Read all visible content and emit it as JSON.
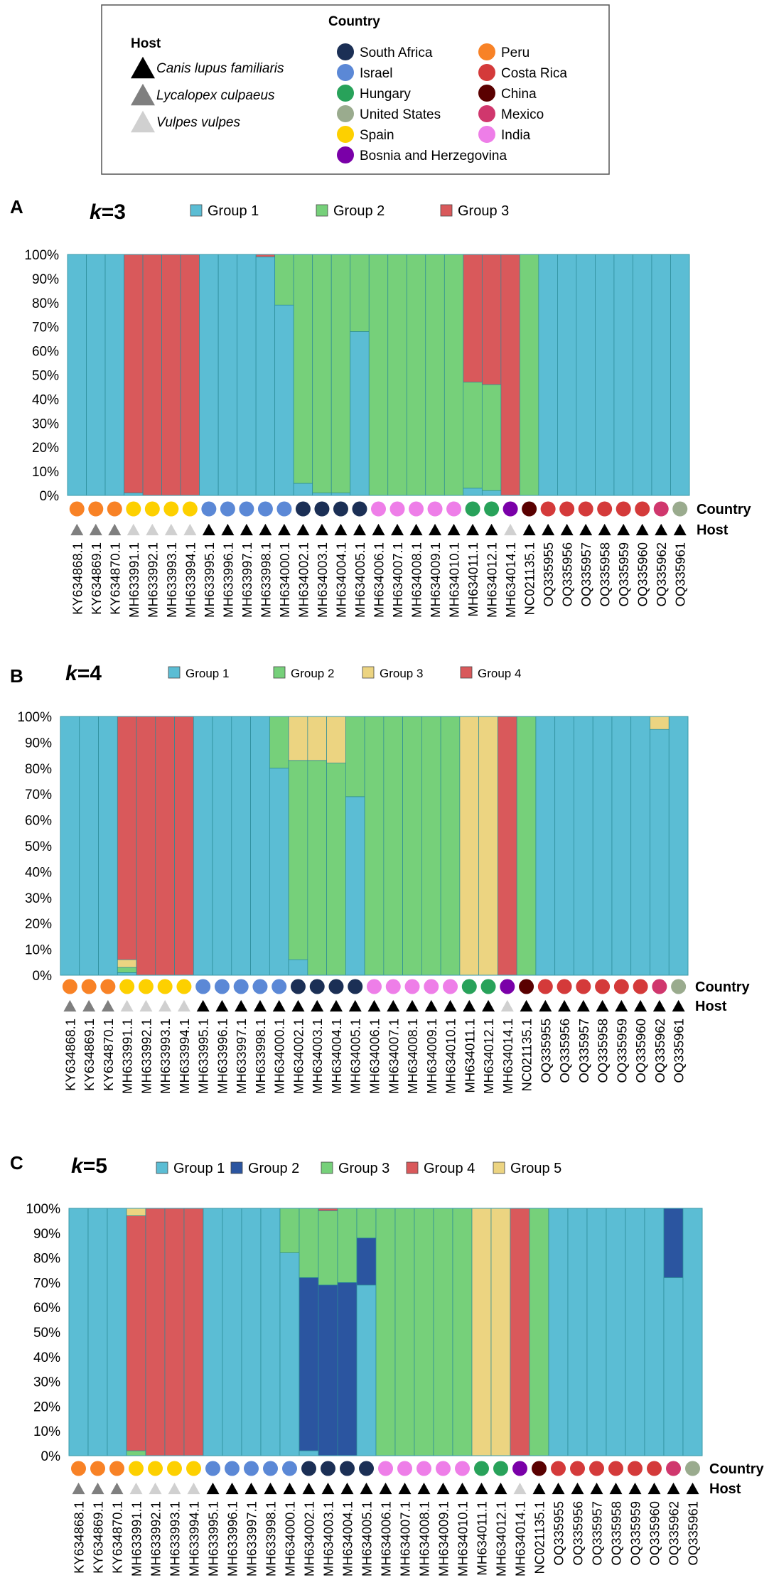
{
  "legend": {
    "host_title": "Host",
    "hosts": [
      {
        "name": "Canis lupus familiaris",
        "color": "#000000",
        "key": "C"
      },
      {
        "name": "Lycalopex culpaeus",
        "color": "#7f7f7f",
        "key": "L"
      },
      {
        "name": "Vulpes vulpes",
        "color": "#d0d0d0",
        "key": "V"
      }
    ],
    "country_title": "Country",
    "countries": [
      {
        "name": "South Africa",
        "color": "#1b2f55",
        "key": "SA"
      },
      {
        "name": "Israel",
        "color": "#5b88d6",
        "key": "IL"
      },
      {
        "name": "Hungary",
        "color": "#28a25a",
        "key": "HU"
      },
      {
        "name": "United States",
        "color": "#9aab8e",
        "key": "US"
      },
      {
        "name": "Spain",
        "color": "#fdd000",
        "key": "ES"
      },
      {
        "name": "Bosnia and Herzegovina",
        "color": "#7a00a8",
        "key": "BA"
      },
      {
        "name": "Peru",
        "color": "#f88226",
        "key": "PE"
      },
      {
        "name": "Costa Rica",
        "color": "#d43a3a",
        "key": "CR"
      },
      {
        "name": "China",
        "color": "#5a0000",
        "key": "CN"
      },
      {
        "name": "Mexico",
        "color": "#d0376d",
        "key": "MX"
      },
      {
        "name": "India",
        "color": "#ee7ee8",
        "key": "IN"
      }
    ]
  },
  "row_labels": {
    "country": "Country",
    "host": "Host"
  },
  "chart_data": [
    {
      "panel": "A",
      "k_prefix": "k",
      "k_value": "=3",
      "type": "bar",
      "stacked": true,
      "ylim": [
        0,
        100
      ],
      "yticks": [
        "0%",
        "10%",
        "20%",
        "30%",
        "40%",
        "50%",
        "60%",
        "70%",
        "80%",
        "90%",
        "100%"
      ],
      "groups": [
        {
          "name": "Group 1",
          "color": "#5bbdd4"
        },
        {
          "name": "Group 2",
          "color": "#76d07a"
        },
        {
          "name": "Group 3",
          "color": "#d9595b"
        }
      ],
      "categories": [
        "KY634868.1",
        "KY634869.1",
        "KY634870.1",
        "MH633991.1",
        "MH633992.1",
        "MH633993.1",
        "MH633994.1",
        "MH633995.1",
        "MH633996.1",
        "MH633997.1",
        "MH633998.1",
        "MH634000.1",
        "MH634002.1",
        "MH634003.1",
        "MH634004.1",
        "MH634005.1",
        "MH634006.1",
        "MH634007.1",
        "MH634008.1",
        "MH634009.1",
        "MH634010.1",
        "MH634011.1",
        "MH634012.1",
        "MH634014.1",
        "NC021135.1",
        "OQ335955",
        "OQ335956",
        "OQ335957",
        "OQ335958",
        "OQ335959",
        "OQ335960",
        "OQ335962",
        "OQ335961"
      ],
      "country": [
        "PE",
        "PE",
        "PE",
        "ES",
        "ES",
        "ES",
        "ES",
        "IL",
        "IL",
        "IL",
        "IL",
        "IL",
        "SA",
        "SA",
        "SA",
        "SA",
        "IN",
        "IN",
        "IN",
        "IN",
        "IN",
        "HU",
        "HU",
        "BA",
        "CN",
        "CR",
        "CR",
        "CR",
        "CR",
        "CR",
        "CR",
        "MX",
        "US"
      ],
      "host": [
        "L",
        "L",
        "L",
        "V",
        "V",
        "V",
        "V",
        "C",
        "C",
        "C",
        "C",
        "C",
        "C",
        "C",
        "C",
        "C",
        "C",
        "C",
        "C",
        "C",
        "C",
        "C",
        "C",
        "V",
        "C",
        "C",
        "C",
        "C",
        "C",
        "C",
        "C",
        "C",
        "C"
      ],
      "values": [
        [
          100,
          0,
          0
        ],
        [
          100,
          0,
          0
        ],
        [
          100,
          0,
          0
        ],
        [
          1,
          0,
          99
        ],
        [
          0,
          0,
          100
        ],
        [
          0,
          0,
          100
        ],
        [
          0,
          0,
          100
        ],
        [
          100,
          0,
          0
        ],
        [
          100,
          0,
          0
        ],
        [
          100,
          0,
          0
        ],
        [
          99,
          0,
          1
        ],
        [
          79,
          21,
          0
        ],
        [
          5,
          95,
          0
        ],
        [
          1,
          99,
          0
        ],
        [
          1,
          99,
          0
        ],
        [
          68,
          32,
          0
        ],
        [
          0,
          100,
          0
        ],
        [
          0,
          100,
          0
        ],
        [
          0,
          100,
          0
        ],
        [
          0,
          100,
          0
        ],
        [
          0,
          100,
          0
        ],
        [
          3,
          44,
          53
        ],
        [
          2,
          44,
          54
        ],
        [
          0,
          0,
          100
        ],
        [
          0,
          100,
          0
        ],
        [
          100,
          0,
          0
        ],
        [
          100,
          0,
          0
        ],
        [
          100,
          0,
          0
        ],
        [
          100,
          0,
          0
        ],
        [
          100,
          0,
          0
        ],
        [
          100,
          0,
          0
        ],
        [
          100,
          0,
          0
        ],
        [
          100,
          0,
          0
        ]
      ]
    },
    {
      "panel": "B",
      "k_prefix": "k",
      "k_value": "=4",
      "type": "bar",
      "stacked": true,
      "ylim": [
        0,
        100
      ],
      "yticks": [
        "0%",
        "10%",
        "20%",
        "30%",
        "40%",
        "50%",
        "60%",
        "70%",
        "80%",
        "90%",
        "100%"
      ],
      "groups": [
        {
          "name": "Group 1",
          "color": "#5bbdd4"
        },
        {
          "name": "Group 2",
          "color": "#76d07a"
        },
        {
          "name": "Group 3",
          "color": "#ecd481"
        },
        {
          "name": "Group 4",
          "color": "#d9595b"
        }
      ],
      "categories": [
        "KY634868.1",
        "KY634869.1",
        "KY634870.1",
        "MH633991.1",
        "MH633992.1",
        "MH633993.1",
        "MH633994.1",
        "MH633995.1",
        "MH633996.1",
        "MH633997.1",
        "MH633998.1",
        "MH634000.1",
        "MH634002.1",
        "MH634003.1",
        "MH634004.1",
        "MH634005.1",
        "MH634006.1",
        "MH634007.1",
        "MH634008.1",
        "MH634009.1",
        "MH634010.1",
        "MH634011.1",
        "MH634012.1",
        "MH634014.1",
        "NC021135.1",
        "OQ335955",
        "OQ335956",
        "OQ335957",
        "OQ335958",
        "OQ335959",
        "OQ335960",
        "OQ335962",
        "OQ335961"
      ],
      "country": [
        "PE",
        "PE",
        "PE",
        "ES",
        "ES",
        "ES",
        "ES",
        "IL",
        "IL",
        "IL",
        "IL",
        "IL",
        "SA",
        "SA",
        "SA",
        "SA",
        "IN",
        "IN",
        "IN",
        "IN",
        "IN",
        "HU",
        "HU",
        "BA",
        "CN",
        "CR",
        "CR",
        "CR",
        "CR",
        "CR",
        "CR",
        "MX",
        "US"
      ],
      "host": [
        "L",
        "L",
        "L",
        "V",
        "V",
        "V",
        "V",
        "C",
        "C",
        "C",
        "C",
        "C",
        "C",
        "C",
        "C",
        "C",
        "C",
        "C",
        "C",
        "C",
        "C",
        "C",
        "C",
        "V",
        "C",
        "C",
        "C",
        "C",
        "C",
        "C",
        "C",
        "C",
        "C"
      ],
      "values": [
        [
          100,
          0,
          0,
          0
        ],
        [
          100,
          0,
          0,
          0
        ],
        [
          100,
          0,
          0,
          0
        ],
        [
          1,
          2,
          3,
          94
        ],
        [
          0,
          0,
          0,
          100
        ],
        [
          0,
          0,
          0,
          100
        ],
        [
          0,
          0,
          0,
          100
        ],
        [
          100,
          0,
          0,
          0
        ],
        [
          100,
          0,
          0,
          0
        ],
        [
          100,
          0,
          0,
          0
        ],
        [
          100,
          0,
          0,
          0
        ],
        [
          80,
          20,
          0,
          0
        ],
        [
          6,
          77,
          17,
          0
        ],
        [
          0,
          83,
          17,
          0
        ],
        [
          0,
          82,
          18,
          0
        ],
        [
          69,
          31,
          0,
          0
        ],
        [
          0,
          100,
          0,
          0
        ],
        [
          0,
          100,
          0,
          0
        ],
        [
          0,
          100,
          0,
          0
        ],
        [
          0,
          100,
          0,
          0
        ],
        [
          0,
          100,
          0,
          0
        ],
        [
          0,
          0,
          100,
          0
        ],
        [
          0,
          0,
          100,
          0
        ],
        [
          0,
          0,
          0,
          100
        ],
        [
          0,
          100,
          0,
          0
        ],
        [
          100,
          0,
          0,
          0
        ],
        [
          100,
          0,
          0,
          0
        ],
        [
          100,
          0,
          0,
          0
        ],
        [
          100,
          0,
          0,
          0
        ],
        [
          100,
          0,
          0,
          0
        ],
        [
          100,
          0,
          0,
          0
        ],
        [
          95,
          0,
          5,
          0
        ],
        [
          100,
          0,
          0,
          0
        ]
      ]
    },
    {
      "panel": "C",
      "k_prefix": "k",
      "k_value": "=5",
      "type": "bar",
      "stacked": true,
      "ylim": [
        0,
        100
      ],
      "yticks": [
        "0%",
        "10%",
        "20%",
        "30%",
        "40%",
        "50%",
        "60%",
        "70%",
        "80%",
        "90%",
        "100%"
      ],
      "groups": [
        {
          "name": "Group 1",
          "color": "#5bbdd4"
        },
        {
          "name": "Group 2",
          "color": "#2b55a0"
        },
        {
          "name": "Group 3",
          "color": "#76d07a"
        },
        {
          "name": "Group 4",
          "color": "#d9595b"
        },
        {
          "name": "Group 5",
          "color": "#ecd481"
        }
      ],
      "categories": [
        "KY634868.1",
        "KY634869.1",
        "KY634870.1",
        "MH633991.1",
        "MH633992.1",
        "MH633993.1",
        "MH633994.1",
        "MH633995.1",
        "MH633996.1",
        "MH633997.1",
        "MH633998.1",
        "MH634000.1",
        "MH634002.1",
        "MH634003.1",
        "MH634004.1",
        "MH634005.1",
        "MH634006.1",
        "MH634007.1",
        "MH634008.1",
        "MH634009.1",
        "MH634010.1",
        "MH634011.1",
        "MH634012.1",
        "MH634014.1",
        "NC021135.1",
        "OQ335955",
        "OQ335956",
        "OQ335957",
        "OQ335958",
        "OQ335959",
        "OQ335960",
        "OQ335962",
        "OQ335961"
      ],
      "country": [
        "PE",
        "PE",
        "PE",
        "ES",
        "ES",
        "ES",
        "ES",
        "IL",
        "IL",
        "IL",
        "IL",
        "IL",
        "SA",
        "SA",
        "SA",
        "SA",
        "IN",
        "IN",
        "IN",
        "IN",
        "IN",
        "HU",
        "HU",
        "BA",
        "CN",
        "CR",
        "CR",
        "CR",
        "CR",
        "CR",
        "CR",
        "MX",
        "US"
      ],
      "host": [
        "L",
        "L",
        "L",
        "V",
        "V",
        "V",
        "V",
        "C",
        "C",
        "C",
        "C",
        "C",
        "C",
        "C",
        "C",
        "C",
        "C",
        "C",
        "C",
        "C",
        "C",
        "C",
        "C",
        "V",
        "C",
        "C",
        "C",
        "C",
        "C",
        "C",
        "C",
        "C",
        "C"
      ],
      "values": [
        [
          100,
          0,
          0,
          0,
          0
        ],
        [
          100,
          0,
          0,
          0,
          0
        ],
        [
          100,
          0,
          0,
          0,
          0
        ],
        [
          0,
          0,
          2,
          95,
          3
        ],
        [
          0,
          0,
          0,
          100,
          0
        ],
        [
          0,
          0,
          0,
          100,
          0
        ],
        [
          0,
          0,
          0,
          100,
          0
        ],
        [
          100,
          0,
          0,
          0,
          0
        ],
        [
          100,
          0,
          0,
          0,
          0
        ],
        [
          100,
          0,
          0,
          0,
          0
        ],
        [
          100,
          0,
          0,
          0,
          0
        ],
        [
          82,
          0,
          18,
          0,
          0
        ],
        [
          2,
          70,
          28,
          0,
          0
        ],
        [
          0,
          69,
          30,
          1,
          0
        ],
        [
          0,
          70,
          30,
          0,
          0
        ],
        [
          69,
          19,
          12,
          0,
          0
        ],
        [
          0,
          0,
          100,
          0,
          0
        ],
        [
          0,
          0,
          100,
          0,
          0
        ],
        [
          0,
          0,
          100,
          0,
          0
        ],
        [
          0,
          0,
          100,
          0,
          0
        ],
        [
          0,
          0,
          100,
          0,
          0
        ],
        [
          0,
          0,
          0,
          0,
          100
        ],
        [
          0,
          0,
          0,
          0,
          100
        ],
        [
          0,
          0,
          0,
          100,
          0
        ],
        [
          0,
          0,
          100,
          0,
          0
        ],
        [
          100,
          0,
          0,
          0,
          0
        ],
        [
          100,
          0,
          0,
          0,
          0
        ],
        [
          100,
          0,
          0,
          0,
          0
        ],
        [
          100,
          0,
          0,
          0,
          0
        ],
        [
          100,
          0,
          0,
          0,
          0
        ],
        [
          100,
          0,
          0,
          0,
          0
        ],
        [
          72,
          28,
          0,
          0,
          0
        ],
        [
          100,
          0,
          0,
          0,
          0
        ]
      ]
    }
  ]
}
